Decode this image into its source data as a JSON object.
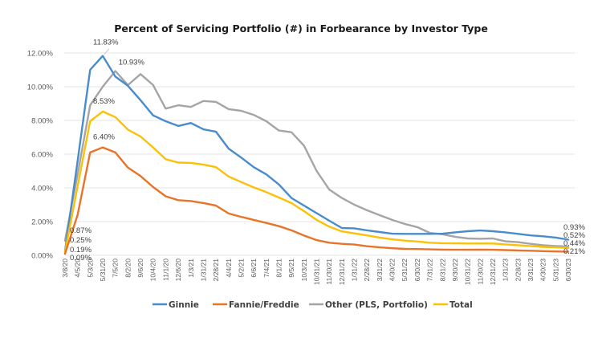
{
  "chart_data": {
    "type": "line",
    "title": "Percent of Servicing Portfolio (#) in Forbearance by Investor Type",
    "xlabel": "",
    "ylabel": "",
    "ylim": [
      0,
      12
    ],
    "yticks": [
      "0.00%",
      "2.00%",
      "4.00%",
      "6.00%",
      "8.00%",
      "10.00%",
      "12.00%"
    ],
    "ytick_values": [
      0,
      2,
      4,
      6,
      8,
      10,
      12
    ],
    "grid": true,
    "legend_position": "bottom",
    "categories": [
      "3/8/20",
      "4/5/20",
      "5/3/20",
      "5/31/20",
      "7/5/20",
      "8/2/20",
      "9/6/20",
      "10/4/20",
      "11/1/20",
      "12/6/20",
      "1/3/21",
      "1/31/21",
      "2/28/21",
      "4/4/21",
      "5/2/21",
      "6/6/21",
      "7/4/21",
      "8/1/21",
      "9/5/21",
      "10/3/21",
      "10/31/21",
      "11/30/21",
      "12/31/21",
      "1/31/22",
      "2/28/22",
      "3/31/22",
      "4/30/22",
      "5/31/22",
      "6/30/22",
      "7/31/22",
      "8/31/22",
      "9/30/22",
      "10/31/22",
      "11/30/22",
      "12/31/22",
      "1/31/23",
      "2/28/23",
      "3/31/23",
      "4/30/23",
      "5/31/23",
      "6/30/23"
    ],
    "series": [
      {
        "name": "Ginnie",
        "color": "#4a8ccb",
        "values": [
          0.25,
          5.6,
          11.0,
          11.83,
          10.6,
          10.05,
          9.2,
          8.3,
          7.95,
          7.67,
          7.85,
          7.47,
          7.33,
          6.33,
          5.8,
          5.23,
          4.8,
          4.2,
          3.4,
          2.95,
          2.5,
          2.05,
          1.62,
          1.6,
          1.48,
          1.38,
          1.28,
          1.27,
          1.27,
          1.27,
          1.28,
          1.36,
          1.43,
          1.47,
          1.43,
          1.36,
          1.27,
          1.18,
          1.13,
          1.05,
          0.93
        ]
      },
      {
        "name": "Fannie/Freddie",
        "color": "#e8742a",
        "values": [
          0.09,
          2.4,
          6.1,
          6.4,
          6.1,
          5.2,
          4.7,
          4.05,
          3.5,
          3.27,
          3.22,
          3.1,
          2.95,
          2.48,
          2.28,
          2.1,
          1.92,
          1.73,
          1.48,
          1.17,
          0.9,
          0.75,
          0.68,
          0.64,
          0.54,
          0.47,
          0.42,
          0.38,
          0.37,
          0.35,
          0.34,
          0.33,
          0.33,
          0.34,
          0.33,
          0.31,
          0.29,
          0.27,
          0.25,
          0.23,
          0.21
        ]
      },
      {
        "name": "Other (PLS, Portfolio)",
        "color": "#a5a5a5",
        "values": [
          0.87,
          4.8,
          8.9,
          10.0,
          10.93,
          10.1,
          10.75,
          10.1,
          8.7,
          8.9,
          8.8,
          9.15,
          9.1,
          8.67,
          8.57,
          8.33,
          7.95,
          7.4,
          7.3,
          6.5,
          5.0,
          3.9,
          3.4,
          3.0,
          2.67,
          2.38,
          2.1,
          1.86,
          1.67,
          1.33,
          1.25,
          1.1,
          1.0,
          0.98,
          1.0,
          0.83,
          0.78,
          0.68,
          0.6,
          0.55,
          0.52
        ]
      },
      {
        "name": "Total",
        "color": "#fbc108",
        "values": [
          0.19,
          4.1,
          7.95,
          8.53,
          8.2,
          7.45,
          7.05,
          6.4,
          5.7,
          5.5,
          5.48,
          5.38,
          5.23,
          4.67,
          4.35,
          4.03,
          3.75,
          3.43,
          3.1,
          2.62,
          2.1,
          1.7,
          1.42,
          1.3,
          1.18,
          1.05,
          0.95,
          0.87,
          0.82,
          0.75,
          0.72,
          0.71,
          0.7,
          0.7,
          0.7,
          0.65,
          0.6,
          0.55,
          0.5,
          0.47,
          0.44
        ]
      }
    ],
    "annotations": [
      {
        "series": "Ginnie",
        "index": 3,
        "text": "11.83%"
      },
      {
        "series": "Other (PLS, Portfolio)",
        "index": 4,
        "text": "10.93%"
      },
      {
        "series": "Total",
        "index": 3,
        "text": "8.53%"
      },
      {
        "series": "Fannie/Freddie",
        "index": 3,
        "text": "6.40%"
      },
      {
        "series": "Other (PLS, Portfolio)",
        "index": 0,
        "text": "0.87%"
      },
      {
        "series": "Ginnie",
        "index": 0,
        "text": "0.25%"
      },
      {
        "series": "Total",
        "index": 0,
        "text": "0.19%"
      },
      {
        "series": "Fannie/Freddie",
        "index": 0,
        "text": "0.09%"
      },
      {
        "series": "Ginnie",
        "index": 40,
        "text": "0.93%"
      },
      {
        "series": "Other (PLS, Portfolio)",
        "index": 40,
        "text": "0.52%"
      },
      {
        "series": "Total",
        "index": 40,
        "text": "0.44%"
      },
      {
        "series": "Fannie/Freddie",
        "index": 40,
        "text": "0.21%"
      }
    ]
  }
}
